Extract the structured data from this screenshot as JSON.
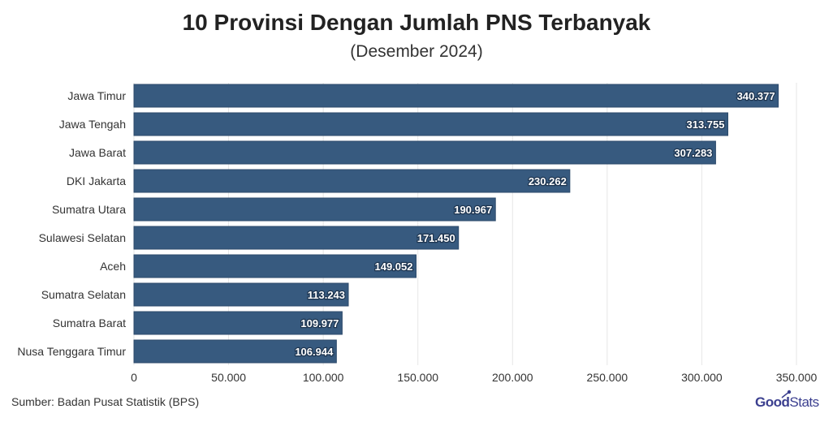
{
  "chart_data": {
    "type": "bar",
    "orientation": "horizontal",
    "title": "10 Provinsi Dengan Jumlah PNS Terbanyak",
    "subtitle": "(Desember 2024)",
    "categories": [
      "Jawa Timur",
      "Jawa Tengah",
      "Jawa Barat",
      "DKI Jakarta",
      "Sumatra Utara",
      "Sulawesi Selatan",
      "Aceh",
      "Sumatra Selatan",
      "Sumatra Barat",
      "Nusa Tenggara Timur"
    ],
    "values": [
      340377,
      313755,
      307283,
      230262,
      190967,
      171450,
      149052,
      113243,
      109977,
      106944
    ],
    "value_labels": [
      "340.377",
      "313.755",
      "307.283",
      "230.262",
      "190.967",
      "171.450",
      "149.052",
      "113.243",
      "109.977",
      "106.944"
    ],
    "xlim": [
      0,
      350000
    ],
    "x_ticks": [
      0,
      50000,
      100000,
      150000,
      200000,
      250000,
      300000,
      350000
    ],
    "x_tick_labels": [
      "0",
      "50.000",
      "100.000",
      "150.000",
      "200.000",
      "250.000",
      "300.000",
      "350.000"
    ],
    "grid": true,
    "bar_color": "#375a7f"
  },
  "footer": {
    "source": "Sumber: Badan Pusat Statistik (BPS)",
    "logo_good": "Good",
    "logo_stats": "Stats"
  },
  "colors": {
    "logo": "#3b3f8f"
  }
}
